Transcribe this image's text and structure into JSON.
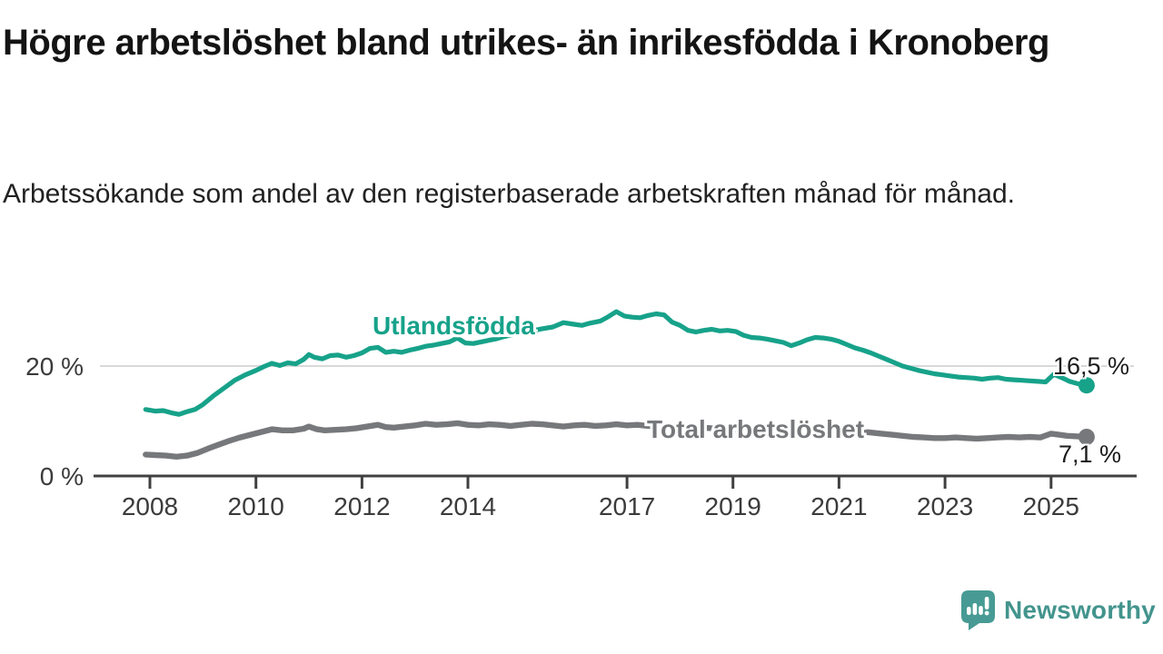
{
  "header": {
    "title": "Högre arbetslöshet bland utrikes- än inrikesfödda i Kronoberg",
    "subtitle": "Arbetssökande som andel av den registerbaserade arbetskraften månad för månad."
  },
  "chart_data": {
    "type": "line",
    "title": "Högre arbetslöshet bland utrikes- än inrikesfödda i Kronoberg",
    "subtitle": "Arbetssökande som andel av den registerbaserade arbetskraften månad för månad.",
    "unit": "%",
    "x_axis": {
      "ticks": [
        2008,
        2010,
        2012,
        2014,
        2017,
        2019,
        2021,
        2023,
        2025
      ],
      "tick_labels": [
        "2008",
        "2010",
        "2012",
        "2014",
        "2017",
        "2019",
        "2021",
        "2023",
        "2025"
      ],
      "range": [
        2007.9,
        2025.8
      ]
    },
    "y_axis": {
      "ticks": [
        0,
        20
      ],
      "tick_labels": [
        "0 %",
        "20 %"
      ],
      "range": [
        0,
        33
      ],
      "gridlines": [
        20
      ]
    },
    "grid": true,
    "legend_position": "inline-labels",
    "series": [
      {
        "name": "Utlandsfödda",
        "color": "#17a28a",
        "end_label": "16,5 %",
        "end_value": 16.5,
        "points": [
          [
            2007.92,
            12.1
          ],
          [
            2008.1,
            11.8
          ],
          [
            2008.25,
            11.9
          ],
          [
            2008.4,
            11.5
          ],
          [
            2008.55,
            11.2
          ],
          [
            2008.7,
            11.7
          ],
          [
            2008.85,
            12.1
          ],
          [
            2009.0,
            13.0
          ],
          [
            2009.2,
            14.6
          ],
          [
            2009.4,
            16.0
          ],
          [
            2009.6,
            17.4
          ],
          [
            2009.8,
            18.4
          ],
          [
            2010.0,
            19.2
          ],
          [
            2010.15,
            19.9
          ],
          [
            2010.3,
            20.5
          ],
          [
            2010.45,
            20.1
          ],
          [
            2010.6,
            20.6
          ],
          [
            2010.75,
            20.4
          ],
          [
            2010.9,
            21.2
          ],
          [
            2011.0,
            22.1
          ],
          [
            2011.1,
            21.6
          ],
          [
            2011.25,
            21.3
          ],
          [
            2011.4,
            21.9
          ],
          [
            2011.55,
            22.0
          ],
          [
            2011.7,
            21.6
          ],
          [
            2011.85,
            21.9
          ],
          [
            2012.0,
            22.4
          ],
          [
            2012.15,
            23.2
          ],
          [
            2012.3,
            23.4
          ],
          [
            2012.45,
            22.5
          ],
          [
            2012.6,
            22.7
          ],
          [
            2012.75,
            22.5
          ],
          [
            2012.9,
            22.9
          ],
          [
            2013.05,
            23.2
          ],
          [
            2013.2,
            23.6
          ],
          [
            2013.35,
            23.8
          ],
          [
            2013.5,
            24.1
          ],
          [
            2013.65,
            24.4
          ],
          [
            2013.8,
            25.1
          ],
          [
            2013.95,
            24.2
          ],
          [
            2014.1,
            24.1
          ],
          [
            2014.25,
            24.4
          ],
          [
            2014.4,
            24.7
          ],
          [
            2014.55,
            25.0
          ],
          [
            2014.7,
            25.4
          ],
          [
            2014.85,
            25.7
          ],
          [
            2015.0,
            26.0
          ],
          [
            2015.2,
            26.4
          ],
          [
            2015.4,
            26.8
          ],
          [
            2015.6,
            27.1
          ],
          [
            2015.8,
            27.9
          ],
          [
            2016.0,
            27.6
          ],
          [
            2016.15,
            27.4
          ],
          [
            2016.3,
            27.8
          ],
          [
            2016.5,
            28.2
          ],
          [
            2016.65,
            29.0
          ],
          [
            2016.8,
            29.9
          ],
          [
            2016.95,
            29.1
          ],
          [
            2017.1,
            28.9
          ],
          [
            2017.25,
            28.8
          ],
          [
            2017.4,
            29.2
          ],
          [
            2017.55,
            29.5
          ],
          [
            2017.7,
            29.3
          ],
          [
            2017.85,
            28.0
          ],
          [
            2018.0,
            27.4
          ],
          [
            2018.15,
            26.5
          ],
          [
            2018.3,
            26.2
          ],
          [
            2018.45,
            26.5
          ],
          [
            2018.6,
            26.7
          ],
          [
            2018.75,
            26.4
          ],
          [
            2018.9,
            26.5
          ],
          [
            2019.05,
            26.3
          ],
          [
            2019.2,
            25.6
          ],
          [
            2019.35,
            25.2
          ],
          [
            2019.5,
            25.1
          ],
          [
            2019.65,
            24.9
          ],
          [
            2019.8,
            24.6
          ],
          [
            2019.95,
            24.3
          ],
          [
            2020.1,
            23.7
          ],
          [
            2020.25,
            24.2
          ],
          [
            2020.4,
            24.8
          ],
          [
            2020.55,
            25.2
          ],
          [
            2020.7,
            25.1
          ],
          [
            2020.85,
            24.9
          ],
          [
            2021.0,
            24.5
          ],
          [
            2021.15,
            23.9
          ],
          [
            2021.3,
            23.3
          ],
          [
            2021.45,
            22.9
          ],
          [
            2021.6,
            22.4
          ],
          [
            2021.75,
            21.8
          ],
          [
            2021.9,
            21.2
          ],
          [
            2022.05,
            20.6
          ],
          [
            2022.2,
            20.0
          ],
          [
            2022.35,
            19.6
          ],
          [
            2022.5,
            19.2
          ],
          [
            2022.65,
            18.9
          ],
          [
            2022.8,
            18.6
          ],
          [
            2022.95,
            18.4
          ],
          [
            2023.1,
            18.2
          ],
          [
            2023.25,
            18.0
          ],
          [
            2023.4,
            17.9
          ],
          [
            2023.55,
            17.8
          ],
          [
            2023.7,
            17.6
          ],
          [
            2023.85,
            17.8
          ],
          [
            2024.0,
            17.9
          ],
          [
            2024.15,
            17.6
          ],
          [
            2024.3,
            17.5
          ],
          [
            2024.45,
            17.4
          ],
          [
            2024.6,
            17.3
          ],
          [
            2024.75,
            17.2
          ],
          [
            2024.9,
            17.1
          ],
          [
            2025.05,
            18.5
          ],
          [
            2025.2,
            17.9
          ],
          [
            2025.35,
            17.2
          ],
          [
            2025.5,
            16.8
          ],
          [
            2025.67,
            16.5
          ]
        ]
      },
      {
        "name": "Total arbetslöshet",
        "color": "#77787b",
        "end_label": "7,1 %",
        "end_value": 7.1,
        "points": [
          [
            2007.92,
            3.9
          ],
          [
            2008.1,
            3.8
          ],
          [
            2008.3,
            3.7
          ],
          [
            2008.5,
            3.5
          ],
          [
            2008.7,
            3.7
          ],
          [
            2008.9,
            4.2
          ],
          [
            2009.1,
            5.0
          ],
          [
            2009.3,
            5.7
          ],
          [
            2009.5,
            6.4
          ],
          [
            2009.7,
            7.0
          ],
          [
            2009.9,
            7.5
          ],
          [
            2010.1,
            8.0
          ],
          [
            2010.3,
            8.5
          ],
          [
            2010.5,
            8.3
          ],
          [
            2010.7,
            8.3
          ],
          [
            2010.9,
            8.6
          ],
          [
            2011.0,
            9.0
          ],
          [
            2011.15,
            8.5
          ],
          [
            2011.3,
            8.3
          ],
          [
            2011.5,
            8.4
          ],
          [
            2011.7,
            8.5
          ],
          [
            2011.9,
            8.7
          ],
          [
            2012.1,
            9.0
          ],
          [
            2012.3,
            9.3
          ],
          [
            2012.45,
            8.9
          ],
          [
            2012.6,
            8.8
          ],
          [
            2012.8,
            9.0
          ],
          [
            2013.0,
            9.2
          ],
          [
            2013.2,
            9.5
          ],
          [
            2013.4,
            9.3
          ],
          [
            2013.6,
            9.4
          ],
          [
            2013.8,
            9.6
          ],
          [
            2014.0,
            9.3
          ],
          [
            2014.2,
            9.2
          ],
          [
            2014.4,
            9.4
          ],
          [
            2014.6,
            9.3
          ],
          [
            2014.8,
            9.1
          ],
          [
            2015.0,
            9.3
          ],
          [
            2015.2,
            9.5
          ],
          [
            2015.4,
            9.4
          ],
          [
            2015.6,
            9.2
          ],
          [
            2015.8,
            9.0
          ],
          [
            2016.0,
            9.2
          ],
          [
            2016.2,
            9.3
          ],
          [
            2016.4,
            9.1
          ],
          [
            2016.6,
            9.2
          ],
          [
            2016.8,
            9.4
          ],
          [
            2017.0,
            9.2
          ],
          [
            2017.2,
            9.3
          ],
          [
            2017.4,
            9.1
          ],
          [
            2017.6,
            9.0
          ],
          [
            2017.8,
            8.9
          ],
          [
            2018.0,
            8.8
          ],
          [
            2018.2,
            8.7
          ],
          [
            2018.4,
            8.8
          ],
          [
            2018.6,
            8.7
          ],
          [
            2018.8,
            8.6
          ],
          [
            2019.0,
            8.5
          ],
          [
            2019.2,
            8.6
          ],
          [
            2019.4,
            8.5
          ],
          [
            2019.6,
            8.4
          ],
          [
            2019.8,
            8.3
          ],
          [
            2020.0,
            8.4
          ],
          [
            2020.2,
            8.7
          ],
          [
            2020.4,
            9.0
          ],
          [
            2020.6,
            8.9
          ],
          [
            2020.8,
            8.7
          ],
          [
            2021.0,
            8.5
          ],
          [
            2021.2,
            8.3
          ],
          [
            2021.4,
            8.1
          ],
          [
            2021.6,
            7.9
          ],
          [
            2021.8,
            7.7
          ],
          [
            2022.0,
            7.5
          ],
          [
            2022.2,
            7.3
          ],
          [
            2022.4,
            7.1
          ],
          [
            2022.6,
            7.0
          ],
          [
            2022.8,
            6.9
          ],
          [
            2023.0,
            6.9
          ],
          [
            2023.2,
            7.0
          ],
          [
            2023.4,
            6.9
          ],
          [
            2023.6,
            6.8
          ],
          [
            2023.8,
            6.9
          ],
          [
            2024.0,
            7.0
          ],
          [
            2024.2,
            7.1
          ],
          [
            2024.4,
            7.0
          ],
          [
            2024.6,
            7.1
          ],
          [
            2024.8,
            7.0
          ],
          [
            2025.0,
            7.7
          ],
          [
            2025.15,
            7.5
          ],
          [
            2025.3,
            7.3
          ],
          [
            2025.5,
            7.2
          ],
          [
            2025.67,
            7.1
          ]
        ]
      }
    ],
    "colors": {
      "grid": "#d9d9d9",
      "axis": "#404040",
      "tick_text": "#3b3b3b"
    }
  },
  "branding": {
    "logo_text": "Newsworthy",
    "logo_color": "#43948d",
    "logo_icon": "speech-bubble-bar-chart"
  }
}
